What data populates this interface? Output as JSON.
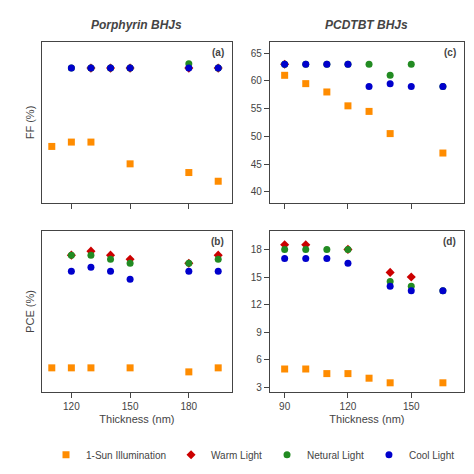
{
  "chart_data": [
    {
      "type": "scatter",
      "title": "Porphyrin BHJs",
      "ylabel": "FF (%)",
      "x": [
        110,
        120,
        130,
        140,
        150,
        180,
        195
      ],
      "xlim": [
        105,
        202
      ],
      "xticks": [
        120,
        150,
        180
      ],
      "ylim": [
        33,
        70
      ],
      "yticks": [],
      "tick_labels": false,
      "grid": false,
      "legend": "bottom",
      "annotations": [
        "(a)"
      ],
      "series": [
        {
          "name": "1-Sun Illumination",
          "color": "#FF8C00",
          "marker": "square",
          "values": [
            46,
            47,
            47,
            null,
            42,
            40,
            38
          ]
        },
        {
          "name": "Warm Light",
          "color": "#CC0000",
          "marker": "diamond",
          "values": [
            null,
            null,
            64,
            64,
            64,
            64,
            64
          ]
        },
        {
          "name": "Netural Light",
          "color": "#228B22",
          "marker": "circle",
          "values": [
            null,
            64,
            64,
            64,
            64,
            65,
            64
          ]
        },
        {
          "name": "Cool Light",
          "color": "#0000CC",
          "marker": "circle",
          "values": [
            null,
            64,
            64,
            64,
            64,
            64,
            64
          ]
        }
      ]
    },
    {
      "type": "scatter",
      "ylabel": "PCE (%)",
      "xlabel": "Thickness (nm)",
      "x": [
        110,
        120,
        130,
        140,
        150,
        180,
        195
      ],
      "xlim": [
        105,
        202
      ],
      "xticks": [
        120,
        150,
        180
      ],
      "ylim": [
        2,
        22
      ],
      "yticks": [],
      "tick_labels": "x",
      "grid": false,
      "annotations": [
        "(b)"
      ],
      "series": [
        {
          "name": "1-Sun Illumination",
          "color": "#FF8C00",
          "marker": "square",
          "values": [
            5,
            5,
            5,
            null,
            5,
            4.5,
            5
          ]
        },
        {
          "name": "Warm Light",
          "color": "#CC0000",
          "marker": "diamond",
          "values": [
            null,
            19,
            19.5,
            19,
            18.5,
            18,
            19
          ]
        },
        {
          "name": "Netural Light",
          "color": "#228B22",
          "marker": "circle",
          "values": [
            null,
            19,
            19,
            18.5,
            18,
            18,
            18.5
          ]
        },
        {
          "name": "Cool Light",
          "color": "#0000CC",
          "marker": "circle",
          "values": [
            null,
            17,
            17.5,
            17,
            16,
            17,
            17
          ]
        }
      ]
    },
    {
      "type": "scatter",
      "title": "PCDTBT BHJs",
      "x": [
        90,
        100,
        110,
        120,
        130,
        140,
        150,
        165
      ],
      "xlim": [
        83,
        175
      ],
      "xticks": [
        90,
        120,
        150
      ],
      "ylim": [
        38,
        67
      ],
      "yticks": [
        40,
        45,
        50,
        55,
        60,
        65
      ],
      "tick_labels": "y",
      "grid": false,
      "annotations": [
        "(c)"
      ],
      "series": [
        {
          "name": "1-Sun Illumination",
          "color": "#FF8C00",
          "marker": "square",
          "values": [
            61,
            59.5,
            58,
            55.5,
            54.5,
            50.5,
            null,
            47
          ]
        },
        {
          "name": "Warm Light",
          "color": "#CC0000",
          "marker": "diamond",
          "values": [
            63,
            null,
            null,
            null,
            null,
            null,
            null,
            null
          ]
        },
        {
          "name": "Netural Light",
          "color": "#228B22",
          "marker": "circle",
          "values": [
            63,
            63,
            63,
            63,
            63,
            61,
            63,
            59
          ]
        },
        {
          "name": "Cool Light",
          "color": "#0000CC",
          "marker": "circle",
          "values": [
            63,
            63,
            63,
            63,
            59,
            59.5,
            59,
            59
          ]
        }
      ]
    },
    {
      "type": "scatter",
      "xlabel": "Thickness (nm)",
      "x": [
        90,
        100,
        110,
        120,
        130,
        140,
        150,
        165
      ],
      "xlim": [
        83,
        175
      ],
      "xticks": [
        90,
        120,
        150
      ],
      "ylim": [
        2.5,
        20
      ],
      "yticks": [
        3,
        6,
        9,
        12,
        15,
        18
      ],
      "grid": false,
      "annotations": [
        "(d)"
      ],
      "series": [
        {
          "name": "1-Sun Illumination",
          "color": "#FF8C00",
          "marker": "square",
          "values": [
            5,
            5,
            4.5,
            4.5,
            4,
            3.5,
            null,
            3.5
          ]
        },
        {
          "name": "Warm Light",
          "color": "#CC0000",
          "marker": "diamond",
          "values": [
            18.5,
            18.5,
            null,
            18,
            null,
            15.5,
            15,
            null
          ]
        },
        {
          "name": "Netural Light",
          "color": "#228B22",
          "marker": "circle",
          "values": [
            18,
            18,
            18,
            18,
            null,
            14.5,
            14,
            13.5
          ]
        },
        {
          "name": "Cool Light",
          "color": "#0000CC",
          "marker": "circle",
          "values": [
            17,
            17,
            17,
            16.5,
            null,
            14,
            13.5,
            13.5
          ]
        }
      ]
    }
  ]
}
